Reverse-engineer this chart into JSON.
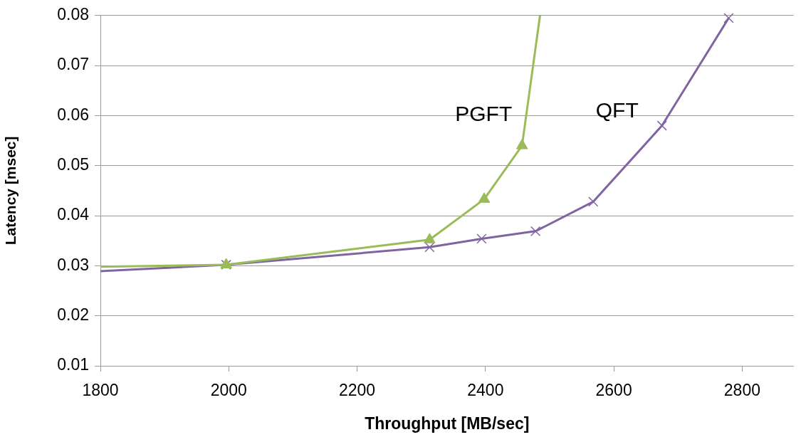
{
  "chart_data": {
    "type": "line",
    "xlabel": "Throughput [MB/sec]",
    "ylabel": "Latency [msec]",
    "xlim": [
      1800,
      2880
    ],
    "xticks": [
      1800,
      2000,
      2200,
      2400,
      2600,
      2800
    ],
    "ylim": [
      0.01,
      0.08
    ],
    "yticks": [
      0.01,
      0.02,
      0.03,
      0.04,
      0.05,
      0.06,
      0.07,
      0.08
    ],
    "grid": "y",
    "legend": false,
    "line_style": "solid",
    "series": [
      {
        "name": "PGFT",
        "color": "#9bbb59",
        "marker": "triangle",
        "x": [
          1800,
          1996,
          2313,
          2398,
          2457,
          2485
        ],
        "values": [
          0.0298,
          0.0302,
          0.0352,
          0.0433,
          0.054,
          0.08
        ]
      },
      {
        "name": "QFT",
        "color": "#8064a2",
        "marker": "cross",
        "x": [
          1800,
          1996,
          2313,
          2394,
          2478,
          2568,
          2675,
          2779
        ],
        "values": [
          0.0289,
          0.0302,
          0.0337,
          0.0354,
          0.0369,
          0.0428,
          0.058,
          0.0795
        ]
      }
    ]
  }
}
